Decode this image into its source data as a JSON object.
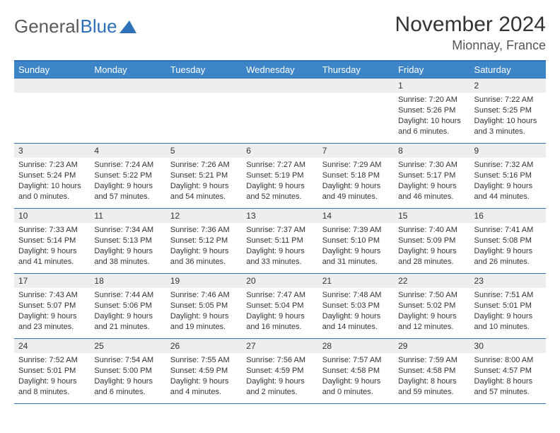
{
  "logo": {
    "text1": "General",
    "text2": "Blue"
  },
  "title": "November 2024",
  "location": "Mionnay, France",
  "colors": {
    "header_bg": "#3d85c6",
    "header_text": "#ffffff",
    "border": "#2d71b8",
    "daynum_bg": "#eeeeee",
    "text": "#333333",
    "logo_gray": "#5a5a5a",
    "logo_blue": "#2d71b8"
  },
  "weekdays": [
    "Sunday",
    "Monday",
    "Tuesday",
    "Wednesday",
    "Thursday",
    "Friday",
    "Saturday"
  ],
  "weeks": [
    [
      null,
      null,
      null,
      null,
      null,
      {
        "n": "1",
        "sr": "Sunrise: 7:20 AM",
        "ss": "Sunset: 5:26 PM",
        "d1": "Daylight: 10 hours",
        "d2": "and 6 minutes."
      },
      {
        "n": "2",
        "sr": "Sunrise: 7:22 AM",
        "ss": "Sunset: 5:25 PM",
        "d1": "Daylight: 10 hours",
        "d2": "and 3 minutes."
      }
    ],
    [
      {
        "n": "3",
        "sr": "Sunrise: 7:23 AM",
        "ss": "Sunset: 5:24 PM",
        "d1": "Daylight: 10 hours",
        "d2": "and 0 minutes."
      },
      {
        "n": "4",
        "sr": "Sunrise: 7:24 AM",
        "ss": "Sunset: 5:22 PM",
        "d1": "Daylight: 9 hours",
        "d2": "and 57 minutes."
      },
      {
        "n": "5",
        "sr": "Sunrise: 7:26 AM",
        "ss": "Sunset: 5:21 PM",
        "d1": "Daylight: 9 hours",
        "d2": "and 54 minutes."
      },
      {
        "n": "6",
        "sr": "Sunrise: 7:27 AM",
        "ss": "Sunset: 5:19 PM",
        "d1": "Daylight: 9 hours",
        "d2": "and 52 minutes."
      },
      {
        "n": "7",
        "sr": "Sunrise: 7:29 AM",
        "ss": "Sunset: 5:18 PM",
        "d1": "Daylight: 9 hours",
        "d2": "and 49 minutes."
      },
      {
        "n": "8",
        "sr": "Sunrise: 7:30 AM",
        "ss": "Sunset: 5:17 PM",
        "d1": "Daylight: 9 hours",
        "d2": "and 46 minutes."
      },
      {
        "n": "9",
        "sr": "Sunrise: 7:32 AM",
        "ss": "Sunset: 5:16 PM",
        "d1": "Daylight: 9 hours",
        "d2": "and 44 minutes."
      }
    ],
    [
      {
        "n": "10",
        "sr": "Sunrise: 7:33 AM",
        "ss": "Sunset: 5:14 PM",
        "d1": "Daylight: 9 hours",
        "d2": "and 41 minutes."
      },
      {
        "n": "11",
        "sr": "Sunrise: 7:34 AM",
        "ss": "Sunset: 5:13 PM",
        "d1": "Daylight: 9 hours",
        "d2": "and 38 minutes."
      },
      {
        "n": "12",
        "sr": "Sunrise: 7:36 AM",
        "ss": "Sunset: 5:12 PM",
        "d1": "Daylight: 9 hours",
        "d2": "and 36 minutes."
      },
      {
        "n": "13",
        "sr": "Sunrise: 7:37 AM",
        "ss": "Sunset: 5:11 PM",
        "d1": "Daylight: 9 hours",
        "d2": "and 33 minutes."
      },
      {
        "n": "14",
        "sr": "Sunrise: 7:39 AM",
        "ss": "Sunset: 5:10 PM",
        "d1": "Daylight: 9 hours",
        "d2": "and 31 minutes."
      },
      {
        "n": "15",
        "sr": "Sunrise: 7:40 AM",
        "ss": "Sunset: 5:09 PM",
        "d1": "Daylight: 9 hours",
        "d2": "and 28 minutes."
      },
      {
        "n": "16",
        "sr": "Sunrise: 7:41 AM",
        "ss": "Sunset: 5:08 PM",
        "d1": "Daylight: 9 hours",
        "d2": "and 26 minutes."
      }
    ],
    [
      {
        "n": "17",
        "sr": "Sunrise: 7:43 AM",
        "ss": "Sunset: 5:07 PM",
        "d1": "Daylight: 9 hours",
        "d2": "and 23 minutes."
      },
      {
        "n": "18",
        "sr": "Sunrise: 7:44 AM",
        "ss": "Sunset: 5:06 PM",
        "d1": "Daylight: 9 hours",
        "d2": "and 21 minutes."
      },
      {
        "n": "19",
        "sr": "Sunrise: 7:46 AM",
        "ss": "Sunset: 5:05 PM",
        "d1": "Daylight: 9 hours",
        "d2": "and 19 minutes."
      },
      {
        "n": "20",
        "sr": "Sunrise: 7:47 AM",
        "ss": "Sunset: 5:04 PM",
        "d1": "Daylight: 9 hours",
        "d2": "and 16 minutes."
      },
      {
        "n": "21",
        "sr": "Sunrise: 7:48 AM",
        "ss": "Sunset: 5:03 PM",
        "d1": "Daylight: 9 hours",
        "d2": "and 14 minutes."
      },
      {
        "n": "22",
        "sr": "Sunrise: 7:50 AM",
        "ss": "Sunset: 5:02 PM",
        "d1": "Daylight: 9 hours",
        "d2": "and 12 minutes."
      },
      {
        "n": "23",
        "sr": "Sunrise: 7:51 AM",
        "ss": "Sunset: 5:01 PM",
        "d1": "Daylight: 9 hours",
        "d2": "and 10 minutes."
      }
    ],
    [
      {
        "n": "24",
        "sr": "Sunrise: 7:52 AM",
        "ss": "Sunset: 5:01 PM",
        "d1": "Daylight: 9 hours",
        "d2": "and 8 minutes."
      },
      {
        "n": "25",
        "sr": "Sunrise: 7:54 AM",
        "ss": "Sunset: 5:00 PM",
        "d1": "Daylight: 9 hours",
        "d2": "and 6 minutes."
      },
      {
        "n": "26",
        "sr": "Sunrise: 7:55 AM",
        "ss": "Sunset: 4:59 PM",
        "d1": "Daylight: 9 hours",
        "d2": "and 4 minutes."
      },
      {
        "n": "27",
        "sr": "Sunrise: 7:56 AM",
        "ss": "Sunset: 4:59 PM",
        "d1": "Daylight: 9 hours",
        "d2": "and 2 minutes."
      },
      {
        "n": "28",
        "sr": "Sunrise: 7:57 AM",
        "ss": "Sunset: 4:58 PM",
        "d1": "Daylight: 9 hours",
        "d2": "and 0 minutes."
      },
      {
        "n": "29",
        "sr": "Sunrise: 7:59 AM",
        "ss": "Sunset: 4:58 PM",
        "d1": "Daylight: 8 hours",
        "d2": "and 59 minutes."
      },
      {
        "n": "30",
        "sr": "Sunrise: 8:00 AM",
        "ss": "Sunset: 4:57 PM",
        "d1": "Daylight: 8 hours",
        "d2": "and 57 minutes."
      }
    ]
  ]
}
